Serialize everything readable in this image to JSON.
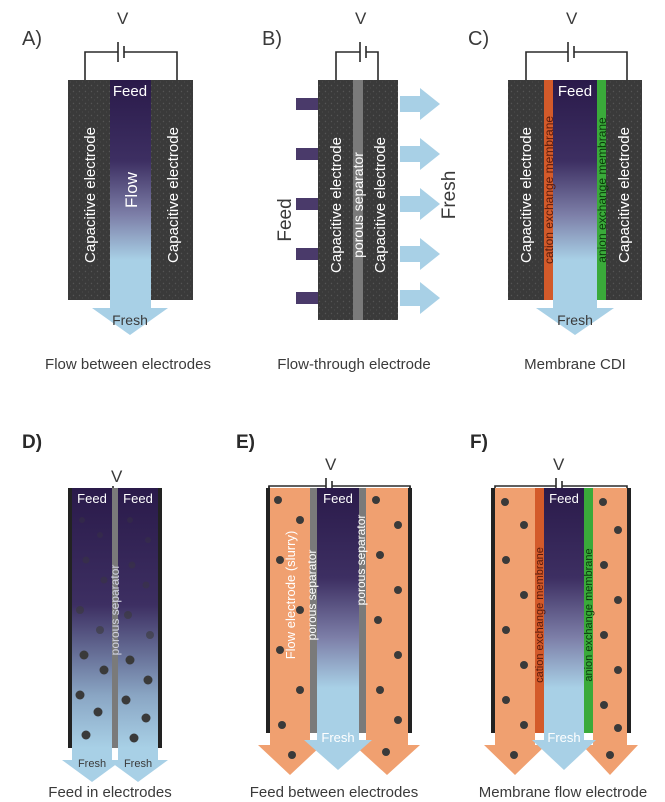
{
  "panels": {
    "A": {
      "letter": "A)",
      "voltage": "V",
      "left_electrode": "Capacitive electrode",
      "right_electrode": "Capacitive electrode",
      "feed": "Feed",
      "flow": "Flow",
      "fresh": "Fresh",
      "caption": "Flow between electrodes"
    },
    "B": {
      "letter": "B)",
      "voltage": "V",
      "left_electrode": "Capacitive electrode",
      "separator": "porous separator",
      "right_electrode": "Capacitive electrode",
      "feed": "Feed",
      "fresh": "Fresh",
      "caption": "Flow-through electrode"
    },
    "C": {
      "letter": "C)",
      "voltage": "V",
      "left_electrode": "Capacitive electrode",
      "cation_membrane": "cation exchange membrane",
      "anion_membrane": "anion exchange membrane",
      "right_electrode": "Capacitive electrode",
      "feed": "Feed",
      "fresh": "Fresh",
      "caption": "Membrane CDI"
    },
    "D": {
      "letter": "D)",
      "voltage": "V",
      "feed_left": "Feed",
      "feed_right": "Feed",
      "separator": "porous separator",
      "fresh_left": "Fresh",
      "fresh_right": "Fresh",
      "caption": "Feed in electrodes"
    },
    "E": {
      "letter": "E)",
      "voltage": "V",
      "flow_electrode": "Flow electrode  (slurry)",
      "separator_left": "porous separator",
      "separator_right": "porous separator",
      "feed": "Feed",
      "fresh": "Fresh",
      "caption": "Feed between electrodes"
    },
    "F": {
      "letter": "F)",
      "voltage": "V",
      "cation_membrane": "cation exchange membrane",
      "anion_membrane": "anion exchange membrane",
      "feed": "Feed",
      "fresh": "Fresh",
      "caption": "Membrane flow electrode"
    }
  },
  "colors": {
    "electrode": "#3a3a3a",
    "feed_dark": "#2a1a4a",
    "fresh_light": "#a8d0e6",
    "slurry": "#f0a070",
    "cation_membrane": "#d35a2a",
    "anion_membrane": "#3aaa3a",
    "separator": "#7a7a7a",
    "particle": "#3a3a3a"
  }
}
